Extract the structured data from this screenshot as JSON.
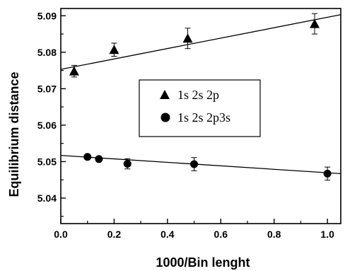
{
  "chart_data": {
    "type": "scatter",
    "xlabel": "1000/Bin lenght",
    "ylabel": "Equilibrium distance",
    "xlim": [
      0.0,
      1.05
    ],
    "ylim": [
      5.033,
      5.092
    ],
    "xticks": [
      0.0,
      0.2,
      0.4,
      0.6,
      0.8,
      1.0
    ],
    "xtick_labels": [
      "0.0",
      "0.2",
      "0.4",
      "0.6",
      "0.8",
      "1.0"
    ],
    "yticks": [
      5.04,
      5.05,
      5.06,
      5.07,
      5.08,
      5.09
    ],
    "ytick_labels": [
      "5.04",
      "5.05",
      "5.06",
      "5.07",
      "5.08",
      "5.09"
    ],
    "grid": false,
    "legend_position": "center-right",
    "series": [
      {
        "name": "1s 2s 2p",
        "marker": "triangle",
        "x": [
          0.05,
          0.2,
          0.476,
          0.952
        ],
        "y": [
          5.0748,
          5.0807,
          5.0838,
          5.0878
        ],
        "err": [
          0.0016,
          0.0018,
          0.0028,
          0.0028
        ],
        "fit": {
          "x": [
            0.0,
            1.05
          ],
          "y": [
            5.0753,
            5.0903
          ]
        }
      },
      {
        "name": "1s 2s 2p3s",
        "marker": "circle",
        "x": [
          0.1,
          0.143,
          0.25,
          0.5,
          1.0
        ],
        "y": [
          5.0513,
          5.0507,
          5.0494,
          5.0493,
          5.0467
        ],
        "err": [
          0.0,
          0.0,
          0.0014,
          0.0018,
          0.0018
        ],
        "fit": {
          "x": [
            0.0,
            1.05
          ],
          "y": [
            5.0517,
            5.0467
          ]
        }
      }
    ]
  },
  "colors": {
    "ink": "#000000",
    "background": "#ffffff"
  }
}
